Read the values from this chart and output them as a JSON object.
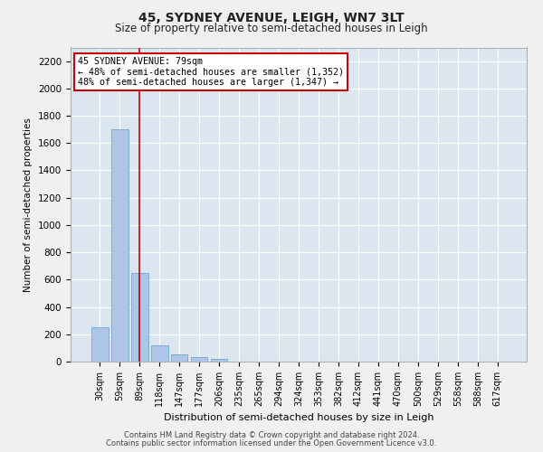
{
  "title": "45, SYDNEY AVENUE, LEIGH, WN7 3LT",
  "subtitle": "Size of property relative to semi-detached houses in Leigh",
  "xlabel": "Distribution of semi-detached houses by size in Leigh",
  "ylabel": "Number of semi-detached properties",
  "categories": [
    "30sqm",
    "59sqm",
    "89sqm",
    "118sqm",
    "147sqm",
    "177sqm",
    "206sqm",
    "235sqm",
    "265sqm",
    "294sqm",
    "324sqm",
    "353sqm",
    "382sqm",
    "412sqm",
    "441sqm",
    "470sqm",
    "500sqm",
    "529sqm",
    "558sqm",
    "588sqm",
    "617sqm"
  ],
  "values": [
    250,
    1700,
    650,
    120,
    55,
    30,
    20,
    0,
    0,
    0,
    0,
    0,
    0,
    0,
    0,
    0,
    0,
    0,
    0,
    0,
    0
  ],
  "bar_color": "#aec6e8",
  "bar_edgecolor": "#7aadd4",
  "background_color": "#dce6f0",
  "grid_color": "#ffffff",
  "fig_background": "#f0f0f0",
  "annotation_box_text": "45 SYDNEY AVENUE: 79sqm\n← 48% of semi-detached houses are smaller (1,352)\n48% of semi-detached houses are larger (1,347) →",
  "annotation_box_color": "#ffffff",
  "annotation_box_edgecolor": "#cc0000",
  "redline_x": 1.97,
  "ylim": [
    0,
    2300
  ],
  "yticks": [
    0,
    200,
    400,
    600,
    800,
    1000,
    1200,
    1400,
    1600,
    1800,
    2000,
    2200
  ],
  "footnote1": "Contains HM Land Registry data © Crown copyright and database right 2024.",
  "footnote2": "Contains public sector information licensed under the Open Government Licence v3.0."
}
